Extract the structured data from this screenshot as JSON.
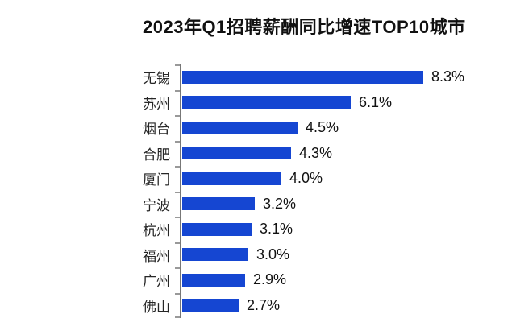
{
  "page": {
    "background": "#ffffff"
  },
  "chart_data": {
    "type": "bar",
    "orientation": "horizontal",
    "title": "2023年Q1招聘薪酬同比增速TOP10城市",
    "categories": [
      "无锡",
      "苏州",
      "烟台",
      "合肥",
      "厦门",
      "宁波",
      "杭州",
      "福州",
      "广州",
      "佛山"
    ],
    "values": [
      8.3,
      6.1,
      4.5,
      4.3,
      4.0,
      3.2,
      3.1,
      3.0,
      2.9,
      2.7
    ],
    "value_labels": [
      "8.3%",
      "6.1%",
      "4.5%",
      "4.3%",
      "4.0%",
      "3.2%",
      "3.1%",
      "3.0%",
      "2.9%",
      "2.7%"
    ],
    "xlabel": "",
    "ylabel": "",
    "xlim": [
      1.0,
      8.3
    ],
    "grid": false,
    "legend": false,
    "bar_color": "#1546d2",
    "axis_color": "#777777",
    "tick_color": "#999999",
    "text_color": "#111111"
  }
}
